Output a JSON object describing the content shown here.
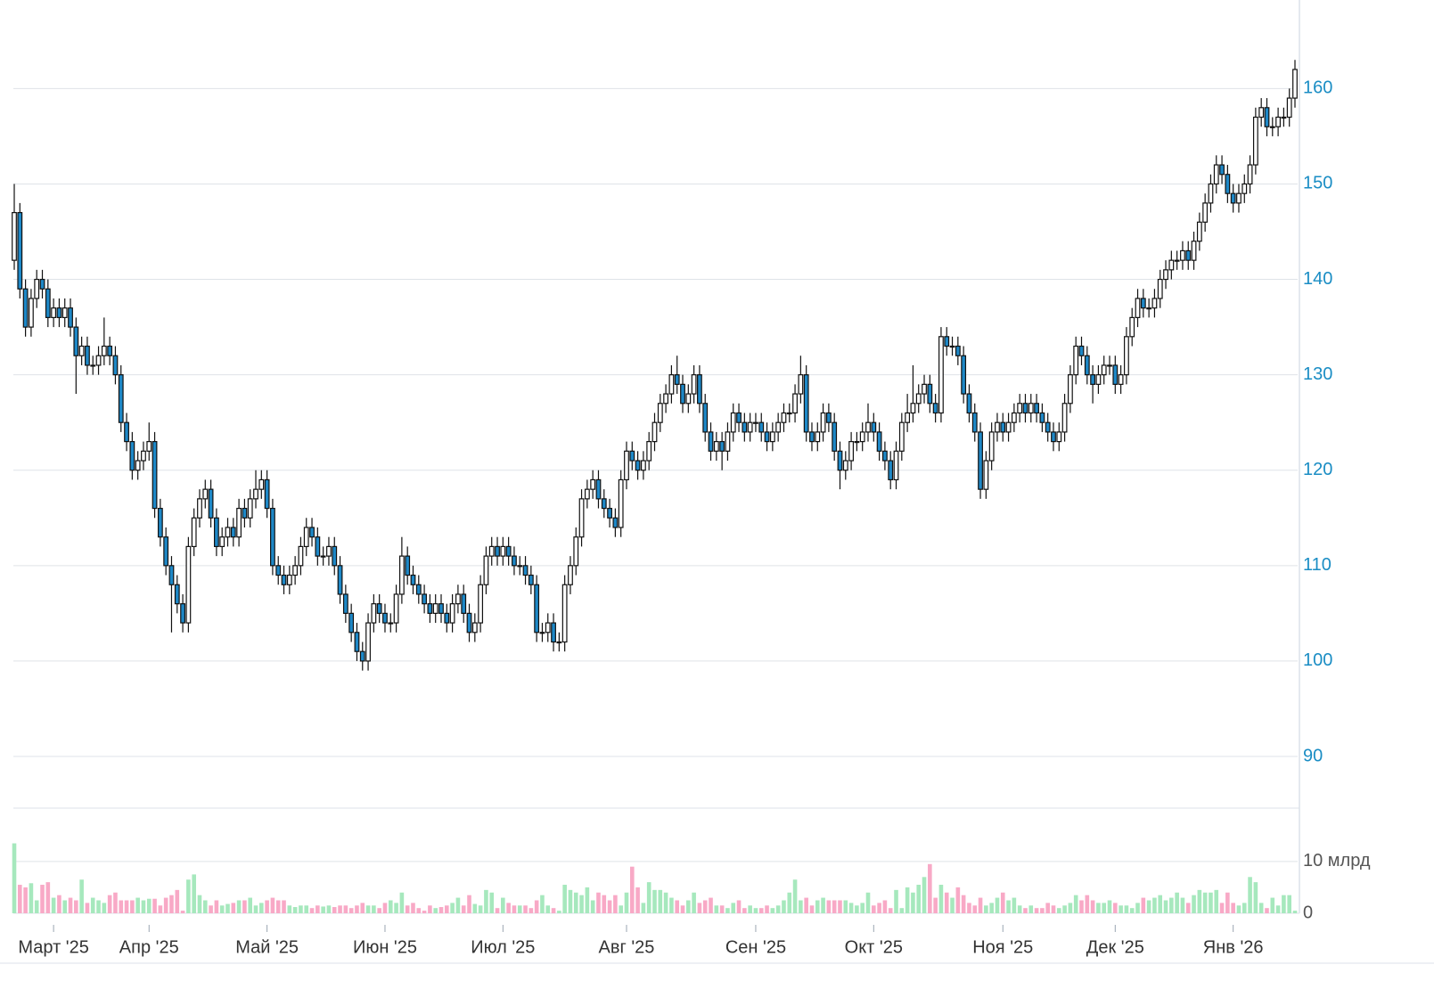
{
  "chart_data": {
    "type": "candlestick",
    "open": [
      142,
      147,
      139,
      135,
      138,
      140,
      139,
      136,
      137,
      136,
      137,
      135,
      132,
      133,
      131,
      131,
      132,
      133,
      132,
      130,
      125,
      123,
      120,
      121,
      122,
      123,
      116,
      113,
      110,
      108,
      106,
      104,
      112,
      115,
      117,
      118,
      115,
      112,
      113,
      114,
      113,
      116,
      115,
      117,
      118,
      119,
      116,
      110,
      109,
      108,
      109,
      110,
      112,
      114,
      113,
      111,
      111,
      112,
      110,
      107,
      105,
      103,
      101,
      100,
      104,
      106,
      105,
      104,
      104,
      107,
      111,
      109,
      108,
      107,
      106,
      105,
      106,
      105,
      104,
      106,
      107,
      105,
      103,
      104,
      108,
      111,
      112,
      111,
      112,
      111,
      110,
      110,
      109,
      108,
      103,
      103,
      104,
      102,
      102,
      108,
      110,
      113,
      117,
      118,
      119,
      117,
      116,
      115,
      114,
      119,
      122,
      121,
      120,
      121,
      123,
      125,
      127,
      128,
      130,
      129,
      127,
      128,
      130,
      127,
      124,
      122,
      123,
      122,
      124,
      126,
      125,
      124,
      125,
      125,
      124,
      123,
      124,
      125,
      126,
      126,
      128,
      130,
      124,
      123,
      124,
      126,
      125,
      122,
      120,
      121,
      123,
      123,
      124,
      125,
      124,
      122,
      121,
      119,
      122,
      125,
      126,
      127,
      128,
      129,
      127,
      126,
      134,
      133,
      133,
      132,
      128,
      126,
      124,
      118,
      121,
      124,
      125,
      124,
      125,
      126,
      127,
      126,
      127,
      126,
      125,
      124,
      123,
      124,
      127,
      130,
      133,
      132,
      130,
      129,
      130,
      131,
      131,
      129,
      130,
      134,
      136,
      138,
      137,
      137,
      138,
      140,
      141,
      142,
      142,
      143,
      142,
      144,
      146,
      148,
      150,
      152,
      151,
      149,
      148,
      149,
      150,
      152,
      157,
      158,
      156,
      156,
      157,
      157,
      159
    ],
    "high": [
      150,
      148,
      140,
      139,
      141,
      141,
      140,
      138,
      138,
      138,
      138,
      136,
      134,
      134,
      132,
      133,
      136,
      134,
      133,
      131,
      126,
      124,
      122,
      123,
      125,
      124,
      117,
      114,
      111,
      109,
      107,
      113,
      116,
      118,
      119,
      119,
      116,
      114,
      115,
      115,
      117,
      117,
      118,
      120,
      120,
      120,
      117,
      111,
      110,
      110,
      111,
      113,
      115,
      115,
      114,
      112,
      113,
      113,
      111,
      108,
      106,
      104,
      102,
      105,
      107,
      107,
      106,
      105,
      108,
      113,
      112,
      110,
      109,
      108,
      107,
      107,
      107,
      106,
      107,
      108,
      108,
      106,
      105,
      109,
      112,
      113,
      113,
      113,
      113,
      112,
      111,
      111,
      110,
      109,
      104,
      105,
      105,
      103,
      109,
      111,
      114,
      118,
      119,
      120,
      120,
      118,
      117,
      116,
      120,
      123,
      123,
      122,
      122,
      124,
      126,
      128,
      129,
      131,
      132,
      130,
      129,
      131,
      131,
      128,
      125,
      124,
      124,
      125,
      127,
      127,
      126,
      126,
      126,
      126,
      125,
      125,
      126,
      127,
      127,
      129,
      132,
      131,
      125,
      125,
      127,
      127,
      126,
      123,
      122,
      124,
      124,
      125,
      127,
      126,
      125,
      123,
      122,
      123,
      126,
      128,
      131,
      129,
      130,
      130,
      128,
      135,
      135,
      134,
      134,
      133,
      129,
      127,
      125,
      122,
      125,
      126,
      126,
      126,
      127,
      128,
      128,
      128,
      128,
      127,
      126,
      125,
      125,
      128,
      131,
      134,
      134,
      133,
      131,
      131,
      132,
      132,
      132,
      131,
      135,
      137,
      139,
      139,
      138,
      139,
      141,
      142,
      143,
      143,
      144,
      144,
      145,
      147,
      149,
      151,
      153,
      153,
      152,
      150,
      150,
      151,
      153,
      158,
      159,
      159,
      157,
      158,
      158,
      160,
      163
    ],
    "low": [
      141,
      138,
      134,
      134,
      137,
      138,
      135,
      135,
      135,
      135,
      134,
      128,
      131,
      130,
      130,
      130,
      131,
      131,
      129,
      124,
      122,
      119,
      119,
      120,
      121,
      115,
      112,
      109,
      103,
      105,
      103,
      103,
      111,
      114,
      116,
      114,
      111,
      111,
      112,
      112,
      112,
      114,
      114,
      116,
      117,
      115,
      109,
      108,
      107,
      107,
      108,
      109,
      111,
      112,
      110,
      110,
      110,
      109,
      106,
      104,
      102,
      100,
      99,
      99,
      103,
      104,
      103,
      103,
      103,
      106,
      108,
      107,
      106,
      105,
      104,
      104,
      104,
      103,
      103,
      105,
      104,
      102,
      102,
      103,
      107,
      110,
      110,
      110,
      110,
      109,
      109,
      108,
      107,
      102,
      102,
      102,
      101,
      101,
      101,
      107,
      109,
      112,
      116,
      117,
      116,
      115,
      114,
      113,
      113,
      118,
      120,
      119,
      119,
      120,
      122,
      124,
      126,
      127,
      128,
      126,
      126,
      127,
      126,
      123,
      121,
      121,
      120,
      121,
      123,
      124,
      123,
      123,
      124,
      123,
      122,
      122,
      123,
      124,
      125,
      125,
      127,
      123,
      122,
      122,
      123,
      124,
      121,
      118,
      119,
      120,
      122,
      122,
      123,
      123,
      121,
      120,
      118,
      118,
      121,
      124,
      125,
      126,
      127,
      126,
      125,
      125,
      132,
      132,
      131,
      127,
      125,
      123,
      117,
      117,
      120,
      123,
      123,
      123,
      124,
      125,
      125,
      125,
      125,
      124,
      123,
      122,
      122,
      123,
      126,
      129,
      131,
      129,
      127,
      128,
      129,
      130,
      128,
      128,
      129,
      133,
      135,
      136,
      136,
      136,
      137,
      139,
      140,
      141,
      141,
      141,
      141,
      143,
      145,
      147,
      149,
      150,
      148,
      147,
      147,
      148,
      149,
      151,
      156,
      155,
      155,
      155,
      156,
      156,
      158
    ],
    "close": [
      147,
      139,
      135,
      138,
      140,
      139,
      136,
      137,
      136,
      137,
      135,
      132,
      133,
      131,
      131,
      132,
      133,
      132,
      130,
      125,
      123,
      120,
      121,
      122,
      123,
      116,
      113,
      110,
      108,
      106,
      104,
      112,
      115,
      117,
      118,
      115,
      112,
      113,
      114,
      113,
      116,
      115,
      117,
      118,
      119,
      116,
      110,
      109,
      108,
      109,
      110,
      112,
      114,
      113,
      111,
      111,
      112,
      110,
      107,
      105,
      103,
      101,
      100,
      104,
      106,
      105,
      104,
      104,
      107,
      111,
      109,
      108,
      107,
      106,
      105,
      106,
      105,
      104,
      106,
      107,
      105,
      103,
      104,
      108,
      111,
      112,
      111,
      112,
      111,
      110,
      110,
      109,
      108,
      103,
      103,
      104,
      102,
      102,
      108,
      110,
      113,
      117,
      118,
      119,
      117,
      116,
      115,
      114,
      119,
      122,
      121,
      120,
      121,
      123,
      125,
      127,
      128,
      130,
      129,
      127,
      128,
      130,
      127,
      124,
      122,
      123,
      122,
      124,
      126,
      125,
      124,
      125,
      125,
      124,
      123,
      124,
      125,
      126,
      126,
      128,
      130,
      124,
      123,
      124,
      126,
      125,
      122,
      120,
      121,
      123,
      123,
      124,
      125,
      124,
      122,
      121,
      119,
      122,
      125,
      126,
      127,
      128,
      129,
      127,
      126,
      134,
      133,
      133,
      132,
      128,
      126,
      124,
      118,
      121,
      124,
      125,
      124,
      125,
      126,
      127,
      126,
      127,
      126,
      125,
      124,
      123,
      124,
      127,
      130,
      133,
      132,
      130,
      129,
      130,
      131,
      131,
      129,
      130,
      134,
      136,
      138,
      137,
      137,
      138,
      140,
      141,
      142,
      142,
      143,
      142,
      144,
      146,
      148,
      150,
      152,
      151,
      149,
      148,
      149,
      150,
      152,
      157,
      158,
      156,
      156,
      157,
      157,
      159,
      162
    ],
    "volume": [
      13.5,
      5.5,
      5,
      5.8,
      2.5,
      5.5,
      6,
      3,
      3.5,
      2.5,
      3,
      2.5,
      6.5,
      2,
      3,
      2.5,
      2,
      3.5,
      4,
      2.5,
      2.5,
      2.5,
      3,
      2.5,
      2.8,
      2.8,
      1.5,
      3,
      3.5,
      4.5,
      0.5,
      6.5,
      7.5,
      3.5,
      2.5,
      1.5,
      2.5,
      1.5,
      1.8,
      2,
      2.5,
      2.5,
      3,
      1.5,
      2,
      2.5,
      3,
      2.5,
      2.5,
      1.5,
      1.2,
      1.5,
      1.5,
      1,
      1.5,
      1.3,
      1.5,
      1.2,
      1.5,
      1.5,
      1,
      1.5,
      2,
      1.5,
      1.5,
      1,
      2,
      2.5,
      2,
      4,
      1.5,
      2,
      1,
      0.5,
      1.5,
      1,
      1.2,
      1.5,
      2,
      3,
      1.5,
      3.5,
      1.8,
      1.5,
      4.5,
      4,
      1,
      3,
      2,
      1.5,
      1.5,
      1.5,
      1,
      2.5,
      3.5,
      1.5,
      1,
      0.5,
      5.5,
      4.5,
      4,
      3.5,
      5,
      2.5,
      4,
      3.5,
      2.5,
      3.5,
      1.5,
      4,
      9,
      5,
      2,
      6,
      4.5,
      4.5,
      4,
      3,
      2.5,
      1.5,
      2.5,
      4,
      2,
      2.5,
      3,
      1.5,
      1.5,
      1,
      2,
      2.5,
      1,
      1.5,
      1,
      1,
      1.5,
      1,
      1.5,
      2.5,
      4,
      6.5,
      2.5,
      3,
      1.5,
      2.5,
      3,
      2.5,
      2.5,
      2.5,
      2.5,
      2,
      1.5,
      2,
      4,
      1.5,
      2,
      2.5,
      1,
      4.5,
      1,
      5,
      4,
      5.5,
      7,
      9.5,
      3,
      5.5,
      4,
      3,
      5,
      3.5,
      2,
      1.5,
      3,
      1.5,
      2,
      3,
      4,
      2.5,
      3,
      1.5,
      1,
      1.5,
      1,
      1,
      2,
      1.5,
      1,
      1.5,
      2,
      3.5,
      2.5,
      3.5,
      2.5,
      2,
      2,
      2.5,
      2,
      1.5,
      1.5,
      1,
      2,
      3,
      2.5,
      3,
      3.5,
      2.5,
      3,
      4,
      3,
      2,
      3.5,
      4.5,
      4,
      4,
      4.5,
      2,
      4,
      2,
      1.5,
      2,
      7,
      6,
      2,
      1,
      3,
      1.5,
      3.5,
      3.5,
      0.5
    ],
    "up_color": "#ffffff",
    "down_color": "#1e88c7",
    "volume_up_color": "#a6e8bd",
    "volume_down_color": "#f8a9c6",
    "xlim": [
      0,
      228
    ],
    "xticks": [
      {
        "value": 7,
        "label": "Март '25"
      },
      {
        "value": 24,
        "label": "Апр '25"
      },
      {
        "value": 45,
        "label": "Май '25"
      },
      {
        "value": 66,
        "label": "Июн '25"
      },
      {
        "value": 87,
        "label": "Июл '25"
      },
      {
        "value": 109,
        "label": "Авг '25"
      },
      {
        "value": 132,
        "label": "Сен '25"
      },
      {
        "value": 153,
        "label": "Окт '25"
      },
      {
        "value": 176,
        "label": "Ноя '25"
      },
      {
        "value": 196,
        "label": "Дек '25"
      },
      {
        "value": 217,
        "label": "Янв '26"
      }
    ],
    "ylim": [
      90,
      169
    ],
    "yticks": [
      90,
      100,
      110,
      120,
      130,
      140,
      150,
      160
    ],
    "volume_ylim": [
      0,
      20.3
    ],
    "volume_yticks": [
      0,
      {
        "value": 10,
        "label": "10 млрд"
      }
    ],
    "grid": true
  }
}
